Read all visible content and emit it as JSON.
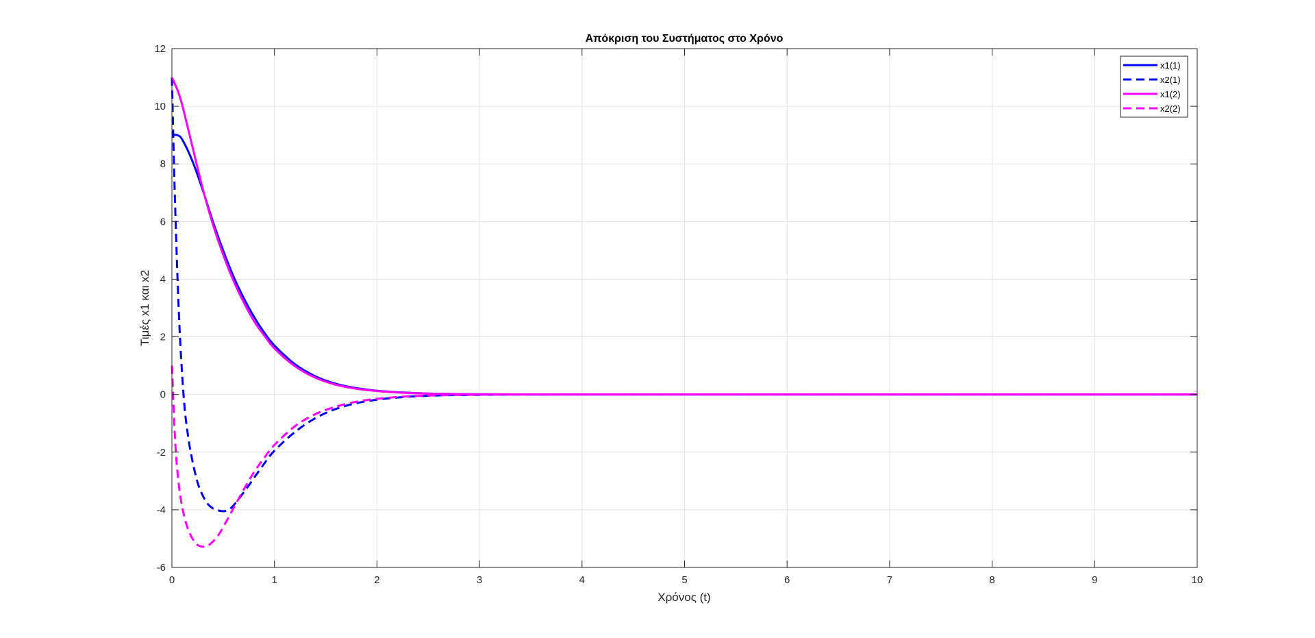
{
  "chart_data": {
    "type": "line",
    "title": "Απόκριση του Συστήματος στο Χρόνο",
    "xlabel": "Χρόνος (t)",
    "ylabel": "Τιμές x1 και x2",
    "xlim": [
      0,
      10
    ],
    "ylim": [
      -6,
      12
    ],
    "xticks": [
      0,
      1,
      2,
      3,
      4,
      5,
      6,
      7,
      8,
      9,
      10
    ],
    "yticks": [
      -6,
      -4,
      -2,
      0,
      2,
      4,
      6,
      8,
      10,
      12
    ],
    "grid": true,
    "legend_position": "top-right",
    "series": [
      {
        "name": "x1(1)",
        "color": "#0000ff",
        "style": "solid",
        "x": [
          0,
          0.05,
          0.1,
          0.2,
          0.3,
          0.4,
          0.5,
          0.6,
          0.7,
          0.8,
          0.9,
          1.0,
          1.2,
          1.4,
          1.6,
          1.8,
          2.0,
          2.25,
          2.5,
          2.75,
          3.0,
          3.5,
          4.0,
          5,
          6,
          7,
          8,
          9,
          10
        ],
        "values": [
          9,
          9,
          8.85,
          8.1,
          7.1,
          6.0,
          5.0,
          4.1,
          3.35,
          2.7,
          2.15,
          1.7,
          1.05,
          0.63,
          0.37,
          0.22,
          0.13,
          0.07,
          0.035,
          0.018,
          0.009,
          0.002,
          0,
          0,
          0,
          0,
          0,
          0,
          0
        ]
      },
      {
        "name": "x2(1)",
        "color": "#0000ff",
        "style": "dashed",
        "x": [
          0,
          0.02,
          0.05,
          0.08,
          0.12,
          0.16,
          0.2,
          0.25,
          0.3,
          0.35,
          0.4,
          0.45,
          0.5,
          0.55,
          0.6,
          0.7,
          0.8,
          0.9,
          1.0,
          1.2,
          1.4,
          1.6,
          1.8,
          2.0,
          2.25,
          2.5,
          2.75,
          3.0,
          3.5,
          4.0,
          5,
          6,
          7,
          8,
          9,
          10
        ],
        "values": [
          11,
          8.0,
          4.5,
          1.9,
          -0.3,
          -1.5,
          -2.3,
          -3.05,
          -3.5,
          -3.8,
          -3.95,
          -4.02,
          -4.05,
          -4.0,
          -3.85,
          -3.4,
          -2.9,
          -2.4,
          -1.95,
          -1.3,
          -0.82,
          -0.5,
          -0.3,
          -0.18,
          -0.09,
          -0.045,
          -0.02,
          -0.01,
          -0.002,
          0,
          0,
          0,
          0,
          0,
          0,
          0
        ]
      },
      {
        "name": "x1(2)",
        "color": "#ff00ff",
        "style": "solid",
        "x": [
          0,
          0.05,
          0.1,
          0.2,
          0.3,
          0.4,
          0.5,
          0.6,
          0.7,
          0.8,
          0.9,
          1.0,
          1.2,
          1.4,
          1.6,
          1.8,
          2.0,
          2.25,
          2.5,
          2.75,
          3.0,
          3.5,
          4.0,
          5,
          6,
          7,
          8,
          9,
          10
        ],
        "values": [
          11,
          10.6,
          10.05,
          8.6,
          7.15,
          5.9,
          4.85,
          3.95,
          3.2,
          2.55,
          2.05,
          1.6,
          0.98,
          0.58,
          0.34,
          0.2,
          0.12,
          0.06,
          0.03,
          0.015,
          0.008,
          0.002,
          0,
          0,
          0,
          0,
          0,
          0,
          0
        ]
      },
      {
        "name": "x2(2)",
        "color": "#ff00ff",
        "style": "dashed",
        "x": [
          0,
          0.03,
          0.06,
          0.1,
          0.15,
          0.2,
          0.25,
          0.3,
          0.35,
          0.4,
          0.45,
          0.5,
          0.6,
          0.7,
          0.8,
          0.9,
          1.0,
          1.2,
          1.4,
          1.6,
          1.8,
          2.0,
          2.25,
          2.5,
          2.75,
          3.0,
          3.5,
          4.0,
          5,
          6,
          7,
          8,
          9,
          10
        ],
        "values": [
          1,
          -1.5,
          -2.9,
          -3.9,
          -4.6,
          -5.0,
          -5.22,
          -5.28,
          -5.25,
          -5.1,
          -4.9,
          -4.6,
          -3.95,
          -3.3,
          -2.7,
          -2.2,
          -1.75,
          -1.1,
          -0.68,
          -0.42,
          -0.25,
          -0.15,
          -0.075,
          -0.037,
          -0.018,
          -0.009,
          -0.002,
          0,
          0,
          0,
          0,
          0,
          0,
          0
        ]
      }
    ]
  }
}
